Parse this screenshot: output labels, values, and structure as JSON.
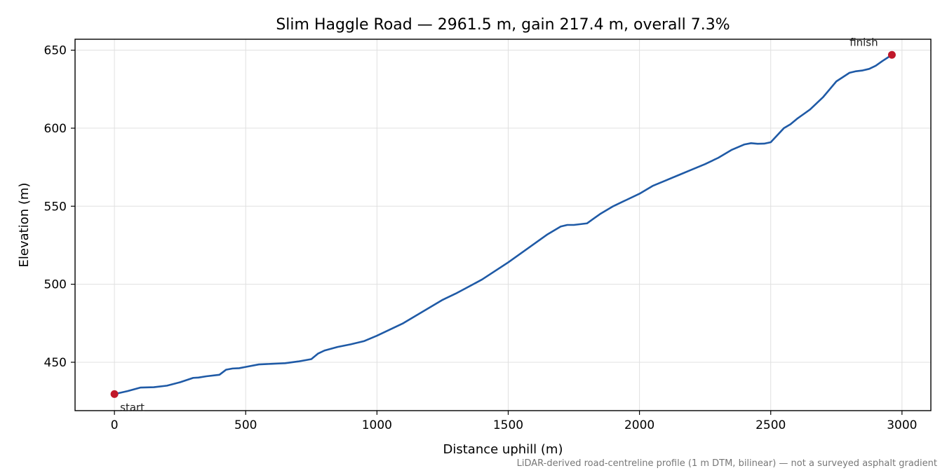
{
  "chart_data": {
    "type": "line",
    "title": "Slim Haggle Road — 2961.5 m, gain 217.4 m, overall 7.3%",
    "xlabel": "Distance uphill (m)",
    "ylabel": "Elevation (m)",
    "xlim": [
      -150,
      3110
    ],
    "ylim": [
      419,
      657
    ],
    "xticks": [
      0,
      500,
      1000,
      1500,
      2000,
      2500,
      3000
    ],
    "yticks": [
      450,
      500,
      550,
      600,
      650
    ],
    "grid": true,
    "line_color": "#1f5aa6",
    "marker_color": "#c0182a",
    "series": [
      {
        "x": [
          0,
          50,
          100,
          150,
          200,
          250,
          300,
          320,
          350,
          400,
          425,
          450,
          475,
          500,
          550,
          600,
          625,
          650,
          700,
          750,
          775,
          800,
          850,
          900,
          950,
          1000,
          1050,
          1100,
          1150,
          1200,
          1250,
          1300,
          1350,
          1400,
          1450,
          1500,
          1550,
          1600,
          1650,
          1700,
          1725,
          1750,
          1800,
          1825,
          1850,
          1900,
          1950,
          2000,
          2050,
          2100,
          2150,
          2200,
          2250,
          2300,
          2350,
          2400,
          2425,
          2450,
          2475,
          2500,
          2550,
          2575,
          2600,
          2650,
          2700,
          2750,
          2800,
          2825,
          2850,
          2875,
          2900,
          2925,
          2961.5
        ],
        "y": [
          429.6,
          431.5,
          433.8,
          434.0,
          435.0,
          437.2,
          440.0,
          440.2,
          441.0,
          442.0,
          445.2,
          446.0,
          446.2,
          447.0,
          448.6,
          449.0,
          449.2,
          449.4,
          450.5,
          452.0,
          455.5,
          457.5,
          459.8,
          461.5,
          463.5,
          467.0,
          471.0,
          475.0,
          480.0,
          485.0,
          490.0,
          494.0,
          498.5,
          503.0,
          508.5,
          514.0,
          520.0,
          526.0,
          532.0,
          537.0,
          538.0,
          538.0,
          539.0,
          542.0,
          545.0,
          550.0,
          554.0,
          558.0,
          563.0,
          566.5,
          570.0,
          573.5,
          577.0,
          581.0,
          586.0,
          589.6,
          590.4,
          590.0,
          590.1,
          591.0,
          600.0,
          602.5,
          606.0,
          612.0,
          620.0,
          630.0,
          635.5,
          636.5,
          637.0,
          638.0,
          640.0,
          643.0,
          647.0
        ]
      }
    ],
    "annotations": [
      {
        "text": "start",
        "x": 0,
        "y": 429.6
      },
      {
        "text": "finish",
        "x": 2961.5,
        "y": 647.0
      }
    ]
  },
  "footnote": "LiDAR-derived road-centreline profile (1 m DTM, bilinear) — not a surveyed asphalt gradient"
}
